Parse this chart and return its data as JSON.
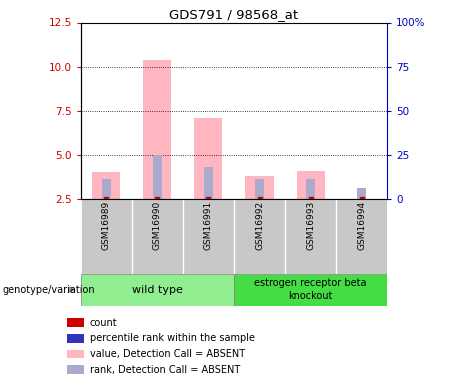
{
  "title": "GDS791 / 98568_at",
  "samples": [
    "GSM16989",
    "GSM16990",
    "GSM16991",
    "GSM16992",
    "GSM16993",
    "GSM16994"
  ],
  "left_ylim": [
    2.5,
    12.5
  ],
  "left_yticks": [
    2.5,
    5.0,
    7.5,
    10.0,
    12.5
  ],
  "right_ylim": [
    0,
    100
  ],
  "right_yticks": [
    0,
    25,
    50,
    75,
    100
  ],
  "right_yticklabels": [
    "0",
    "25",
    "50",
    "75",
    "100%"
  ],
  "pink_bar_values": [
    4.0,
    10.4,
    7.1,
    3.8,
    4.1,
    2.5
  ],
  "pink_bar_bottom": [
    2.5,
    2.5,
    2.5,
    2.5,
    2.5,
    2.5
  ],
  "blue_bar_values": [
    3.6,
    5.0,
    4.3,
    3.6,
    3.6,
    3.1
  ],
  "blue_bar_bottom": [
    2.5,
    2.5,
    2.5,
    2.5,
    2.5,
    2.5
  ],
  "red_color": "#CC0000",
  "pink_color": "#FFB6C1",
  "light_blue_color": "#AAAACC",
  "wt_color": "#90EE90",
  "ko_color": "#44DD44",
  "sample_box_color": "#C8C8C8",
  "legend_items": [
    {
      "color": "#CC0000",
      "label": "count"
    },
    {
      "color": "#3333BB",
      "label": "percentile rank within the sample"
    },
    {
      "color": "#FFB6C1",
      "label": "value, Detection Call = ABSENT"
    },
    {
      "color": "#AAAACC",
      "label": "rank, Detection Call = ABSENT"
    }
  ],
  "genotype_label": "genotype/variation",
  "left_tick_color": "#CC0000",
  "right_tick_color": "#0000CC",
  "pink_bar_width": 0.55,
  "blue_bar_width": 0.18
}
